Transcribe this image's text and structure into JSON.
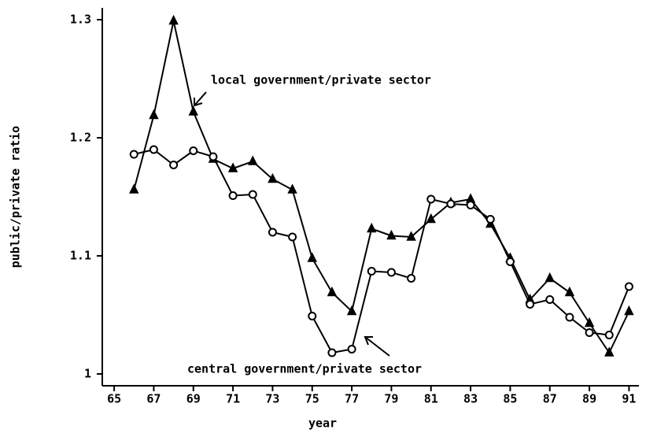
{
  "chart_data": {
    "type": "line",
    "x_label": "year",
    "y_label": "public/private ratio",
    "x": [
      66,
      67,
      68,
      69,
      70,
      71,
      72,
      73,
      74,
      75,
      76,
      77,
      78,
      79,
      80,
      81,
      82,
      83,
      84,
      85,
      86,
      87,
      88,
      89,
      90,
      91
    ],
    "series": [
      {
        "name": "local government/private sector",
        "color": "#000000",
        "marker": "triangle",
        "values": [
          1.156,
          1.219,
          1.299,
          1.222,
          1.182,
          1.174,
          1.18,
          1.165,
          1.156,
          1.098,
          1.069,
          1.053,
          1.123,
          1.117,
          1.116,
          1.131,
          1.145,
          1.148,
          1.127,
          1.098,
          1.063,
          1.081,
          1.069,
          1.043,
          1.018,
          1.053
        ]
      },
      {
        "name": "central government/private sector",
        "color": "#000000",
        "marker": "circle",
        "values": [
          1.186,
          1.19,
          1.177,
          1.189,
          1.184,
          1.151,
          1.152,
          1.12,
          1.116,
          1.049,
          1.018,
          1.021,
          1.087,
          1.086,
          1.081,
          1.148,
          1.144,
          1.143,
          1.131,
          1.095,
          1.059,
          1.063,
          1.048,
          1.035,
          1.033,
          1.074
        ]
      }
    ],
    "xlim": [
      64.4,
      91.5
    ],
    "xticks": [
      65,
      67,
      69,
      71,
      73,
      75,
      77,
      79,
      81,
      83,
      85,
      87,
      89,
      91
    ],
    "ylim": [
      0.99,
      1.31
    ],
    "yticks": [
      1,
      1.1,
      1.2,
      1.3
    ],
    "grid": false
  }
}
